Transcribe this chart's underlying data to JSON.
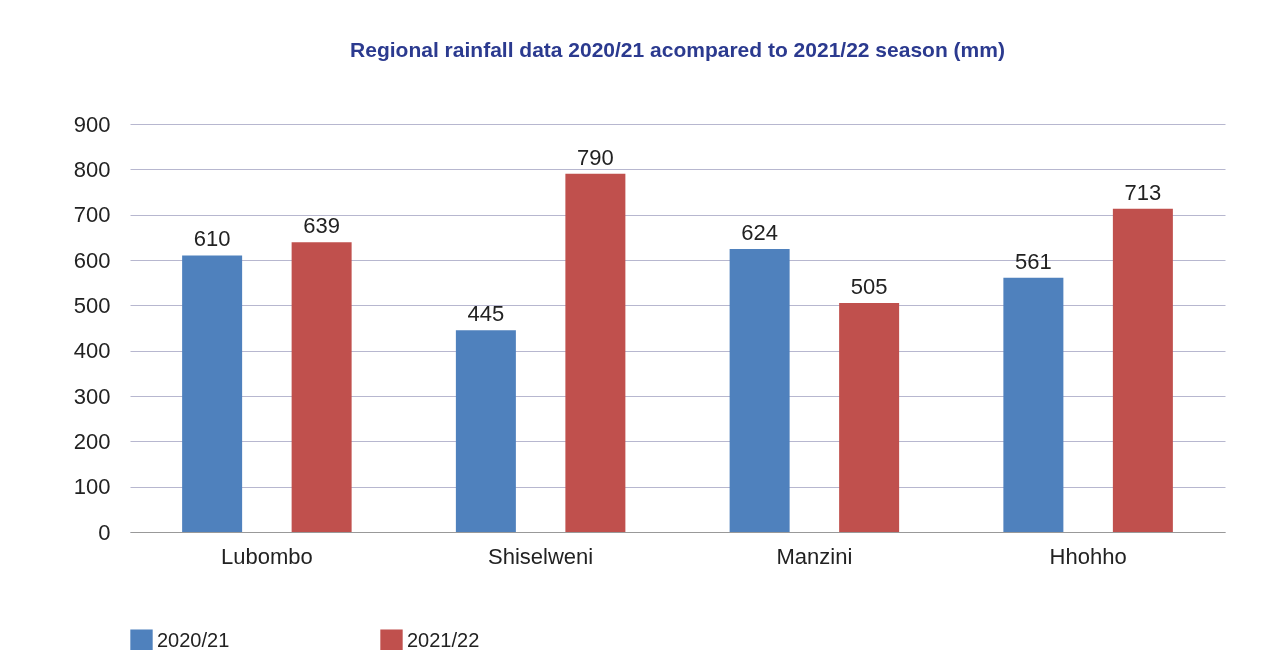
{
  "chart_data": {
    "type": "bar",
    "title": "Regional rainfall data 2020/21 acompared to 2021/22 season (mm)",
    "categories": [
      "Lubombo",
      "Shiselweni",
      "Manzini",
      "Hhohho"
    ],
    "series": [
      {
        "name": "2020/21",
        "color": "#4f81bd",
        "values": [
          610,
          445,
          624,
          561
        ]
      },
      {
        "name": "2021/22",
        "color": "#c0504d",
        "values": [
          639,
          790,
          505,
          713
        ]
      }
    ],
    "ylim": [
      0,
      900
    ],
    "yticks": [
      0,
      100,
      200,
      300,
      400,
      500,
      600,
      700,
      800,
      900
    ],
    "grid": "y",
    "legend": "bottom",
    "data_labels": true
  }
}
